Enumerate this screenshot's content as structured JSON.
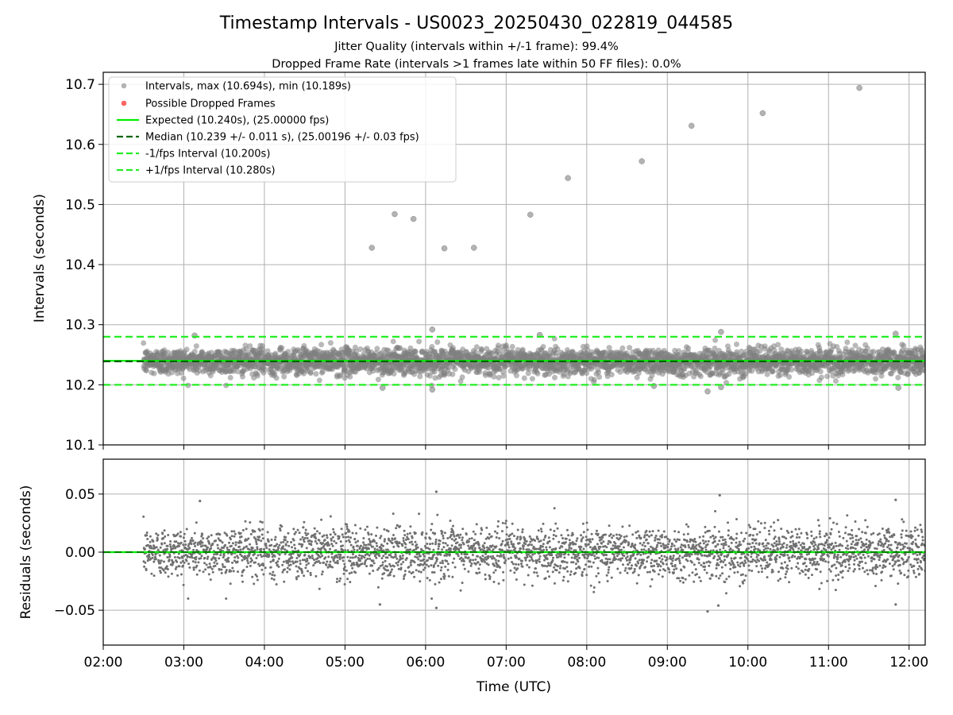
{
  "chart_data": [
    {
      "type": "scatter",
      "panel": "top",
      "title": "Timestamp Intervals - US0023_20250430_022819_044585",
      "subtitle_lines": [
        "Jitter Quality (intervals within +/-1 frame): 99.4%",
        "Dropped Frame Rate (intervals >1 frames late within 50 FF files): 0.0%"
      ],
      "ylabel": "Intervals (seconds)",
      "xlim": [
        "02:00",
        "12:12"
      ],
      "ylim": [
        10.1,
        10.72
      ],
      "y_ticks": [
        "10.1",
        "10.2",
        "10.3",
        "10.4",
        "10.5",
        "10.6",
        "10.7"
      ],
      "grid": true,
      "legend_position": "upper-left",
      "legend": [
        "Intervals, max (10.694s), min (10.189s)",
        "Possible Dropped Frames",
        "Expected (10.240s), (25.00000 fps)",
        "Median (10.239 +/- 0.011 s), (25.00196 +/- 0.03 fps)",
        "-1/fps Interval (10.200s)",
        "+1/fps Interval (10.280s)"
      ],
      "reference_lines": {
        "expected": 10.24,
        "median": 10.239,
        "minus_one_fps": 10.2,
        "plus_one_fps": 10.28
      },
      "bulk_data": {
        "x_range": [
          "02:30",
          "12:12"
        ],
        "center": 10.239,
        "std": 0.011,
        "approx_count": 3400
      },
      "outliers": [
        {
          "x": "05:20",
          "y": 10.428
        },
        {
          "x": "05:37",
          "y": 10.484
        },
        {
          "x": "05:51",
          "y": 10.476
        },
        {
          "x": "06:14",
          "y": 10.427
        },
        {
          "x": "06:36",
          "y": 10.428
        },
        {
          "x": "07:18",
          "y": 10.483
        },
        {
          "x": "07:46",
          "y": 10.544
        },
        {
          "x": "08:41",
          "y": 10.572
        },
        {
          "x": "09:18",
          "y": 10.631
        },
        {
          "x": "10:11",
          "y": 10.652
        },
        {
          "x": "11:23",
          "y": 10.694
        },
        {
          "x": "06:05",
          "y": 10.292
        },
        {
          "x": "07:25",
          "y": 10.283
        },
        {
          "x": "09:40",
          "y": 10.288
        },
        {
          "x": "11:50",
          "y": 10.285
        },
        {
          "x": "03:08",
          "y": 10.282
        },
        {
          "x": "05:28",
          "y": 10.195
        },
        {
          "x": "06:05",
          "y": 10.192
        },
        {
          "x": "09:30",
          "y": 10.189
        },
        {
          "x": "11:52",
          "y": 10.195
        },
        {
          "x": "09:40",
          "y": 10.196
        },
        {
          "x": "08:50",
          "y": 10.198
        }
      ],
      "colors": {
        "points": "#808080",
        "dropped": "#ff6666",
        "expected": "#00ee00",
        "median": "#006400",
        "fps_limits": "#22ee22"
      }
    },
    {
      "type": "scatter",
      "panel": "bottom",
      "xlabel": "Time (UTC)",
      "ylabel": "Residuals (seconds)",
      "xlim": [
        "02:00",
        "12:12"
      ],
      "ylim": [
        -0.08,
        0.08
      ],
      "y_ticks": [
        "−0.05",
        "0.00",
        "0.05"
      ],
      "x_ticks": [
        "02:00",
        "03:00",
        "04:00",
        "05:00",
        "06:00",
        "07:00",
        "08:00",
        "09:00",
        "10:00",
        "11:00",
        "12:00"
      ],
      "grid": true,
      "zero_line": 0.0,
      "extremes": [
        {
          "x": "03:12",
          "y": 0.044
        },
        {
          "x": "06:08",
          "y": 0.052
        },
        {
          "x": "09:39",
          "y": 0.049
        },
        {
          "x": "11:50",
          "y": 0.045
        },
        {
          "x": "05:26",
          "y": -0.045
        },
        {
          "x": "06:08",
          "y": -0.048
        },
        {
          "x": "09:30",
          "y": -0.051
        },
        {
          "x": "09:38",
          "y": -0.046
        },
        {
          "x": "11:50",
          "y": -0.045
        }
      ]
    }
  ]
}
